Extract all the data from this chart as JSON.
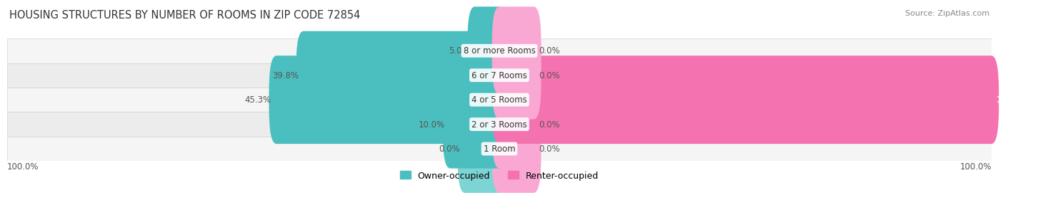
{
  "title": "HOUSING STRUCTURES BY NUMBER OF ROOMS IN ZIP CODE 72854",
  "source": "Source: ZipAtlas.com",
  "categories": [
    "1 Room",
    "2 or 3 Rooms",
    "4 or 5 Rooms",
    "6 or 7 Rooms",
    "8 or more Rooms"
  ],
  "owner_values": [
    0.0,
    10.0,
    45.3,
    39.8,
    5.0
  ],
  "renter_values": [
    0.0,
    0.0,
    100.0,
    0.0,
    0.0
  ],
  "owner_color": "#4bbfbf",
  "renter_color": "#f472b0",
  "owner_color_light": "#7dd4d4",
  "renter_color_light": "#f9a8d4",
  "row_bg_colors": [
    "#f5f5f5",
    "#ececec"
  ],
  "max_value": 100.0,
  "left_axis_label": "100.0%",
  "right_axis_label": "100.0%",
  "title_fontsize": 10.5,
  "source_fontsize": 8,
  "label_fontsize": 8.5,
  "legend_fontsize": 9,
  "small_bar_width": 7,
  "bar_height": 0.6
}
